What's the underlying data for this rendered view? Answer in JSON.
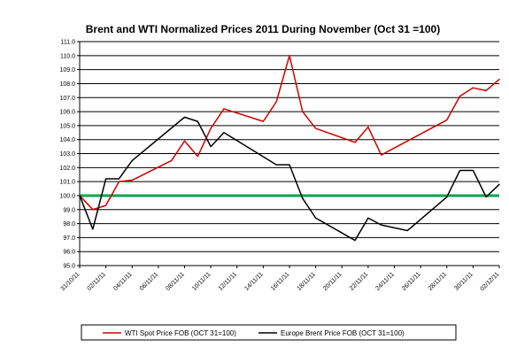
{
  "chart_data": {
    "type": "line",
    "title": "Brent and WTI Normalized Prices 2011 During November (Oct 31 =100)",
    "xlabel": "",
    "ylabel": "",
    "ylim": [
      95.0,
      111.0
    ],
    "y_ticks": [
      "95.0",
      "96.0",
      "97.0",
      "98.0",
      "99.0",
      "100.0",
      "101.0",
      "102.0",
      "103.0",
      "104.0",
      "105.0",
      "106.0",
      "107.0",
      "108.0",
      "109.0",
      "110.0",
      "111.0"
    ],
    "x_ticks": [
      "31/10/11",
      "02/11/11",
      "04/11/11",
      "06/11/11",
      "08/11/11",
      "10/11/11",
      "12/11/11",
      "14/11/11",
      "16/11/11",
      "18/11/11",
      "20/11/11",
      "22/11/11",
      "24/11/11",
      "26/11/11",
      "28/11/11",
      "30/11/11",
      "02/12/11"
    ],
    "x_range_days": [
      0,
      32
    ],
    "grid": true,
    "legend_position": "bottom",
    "reference_line": {
      "value": 100.0,
      "color": "#00a64f"
    },
    "series": [
      {
        "name": "WTI Spot Price FOB (OCT 31=100)",
        "color": "#d00000",
        "points": [
          {
            "date": "31/10/11",
            "value": 100.0
          },
          {
            "date": "01/11/11",
            "value": 99.0
          },
          {
            "date": "02/11/11",
            "value": 99.3
          },
          {
            "date": "03/11/11",
            "value": 101.0
          },
          {
            "date": "04/11/11",
            "value": 101.1
          },
          {
            "date": "07/11/11",
            "value": 102.5
          },
          {
            "date": "08/11/11",
            "value": 103.9
          },
          {
            "date": "09/11/11",
            "value": 102.8
          },
          {
            "date": "10/11/11",
            "value": 104.8
          },
          {
            "date": "11/11/11",
            "value": 106.2
          },
          {
            "date": "14/11/11",
            "value": 105.3
          },
          {
            "date": "15/11/11",
            "value": 106.7
          },
          {
            "date": "16/11/11",
            "value": 110.0
          },
          {
            "date": "17/11/11",
            "value": 106.0
          },
          {
            "date": "18/11/11",
            "value": 104.8
          },
          {
            "date": "21/11/11",
            "value": 103.8
          },
          {
            "date": "22/11/11",
            "value": 104.9
          },
          {
            "date": "23/11/11",
            "value": 102.9
          },
          {
            "date": "28/11/11",
            "value": 105.4
          },
          {
            "date": "29/11/11",
            "value": 107.1
          },
          {
            "date": "30/11/11",
            "value": 107.7
          },
          {
            "date": "01/12/11",
            "value": 107.5
          },
          {
            "date": "02/12/11",
            "value": 108.3
          }
        ]
      },
      {
        "name": "Europe Brent Price FOB (OCT 31=100)",
        "color": "#000000",
        "points": [
          {
            "date": "31/10/11",
            "value": 100.0
          },
          {
            "date": "01/11/11",
            "value": 97.6
          },
          {
            "date": "02/11/11",
            "value": 101.2
          },
          {
            "date": "03/11/11",
            "value": 101.2
          },
          {
            "date": "04/11/11",
            "value": 102.5
          },
          {
            "date": "08/11/11",
            "value": 105.6
          },
          {
            "date": "09/11/11",
            "value": 105.3
          },
          {
            "date": "10/11/11",
            "value": 103.5
          },
          {
            "date": "11/11/11",
            "value": 104.5
          },
          {
            "date": "15/11/11",
            "value": 102.2
          },
          {
            "date": "16/11/11",
            "value": 102.2
          },
          {
            "date": "17/11/11",
            "value": 99.8
          },
          {
            "date": "18/11/11",
            "value": 98.4
          },
          {
            "date": "21/11/11",
            "value": 96.8
          },
          {
            "date": "22/11/11",
            "value": 98.4
          },
          {
            "date": "23/11/11",
            "value": 97.9
          },
          {
            "date": "25/11/11",
            "value": 97.5
          },
          {
            "date": "28/11/11",
            "value": 99.9
          },
          {
            "date": "29/11/11",
            "value": 101.8
          },
          {
            "date": "30/11/11",
            "value": 101.8
          },
          {
            "date": "01/12/11",
            "value": 99.9
          },
          {
            "date": "02/12/11",
            "value": 100.8
          }
        ]
      }
    ]
  }
}
